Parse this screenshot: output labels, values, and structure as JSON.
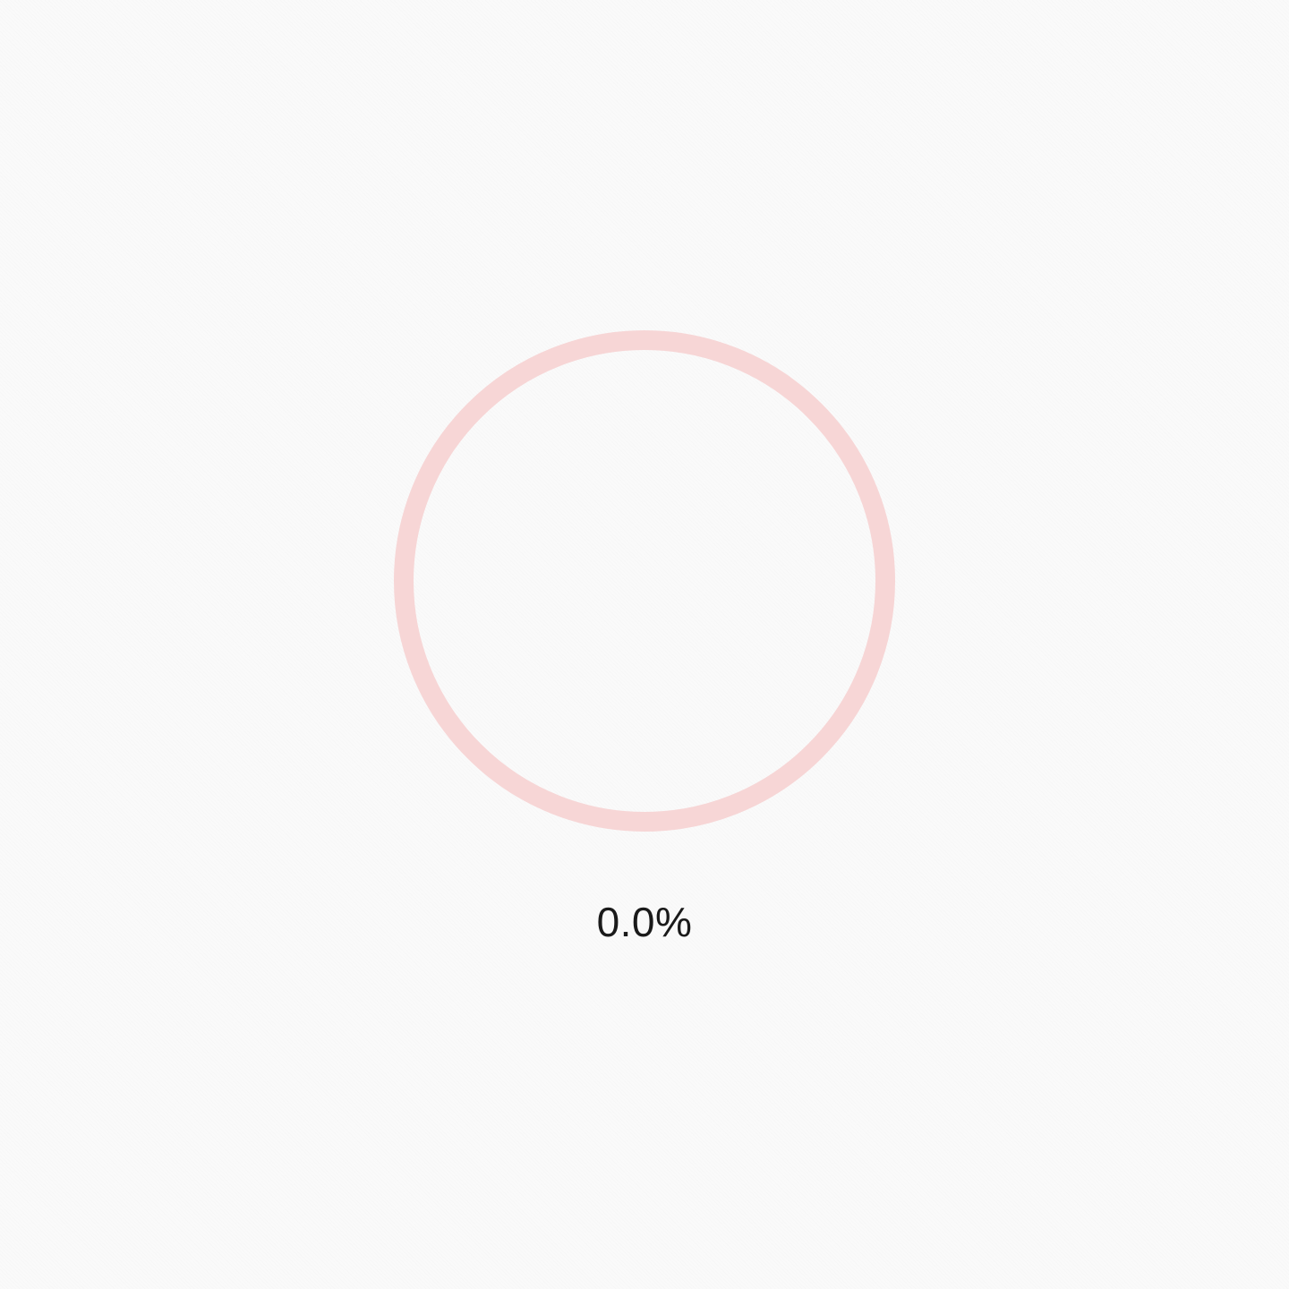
{
  "progress": {
    "value": 0.0,
    "label": "0.0%"
  },
  "colors": {
    "track": "#f7d6d6",
    "fill": "#e57373",
    "text": "#1a1a1a",
    "background": "#fafafa"
  }
}
